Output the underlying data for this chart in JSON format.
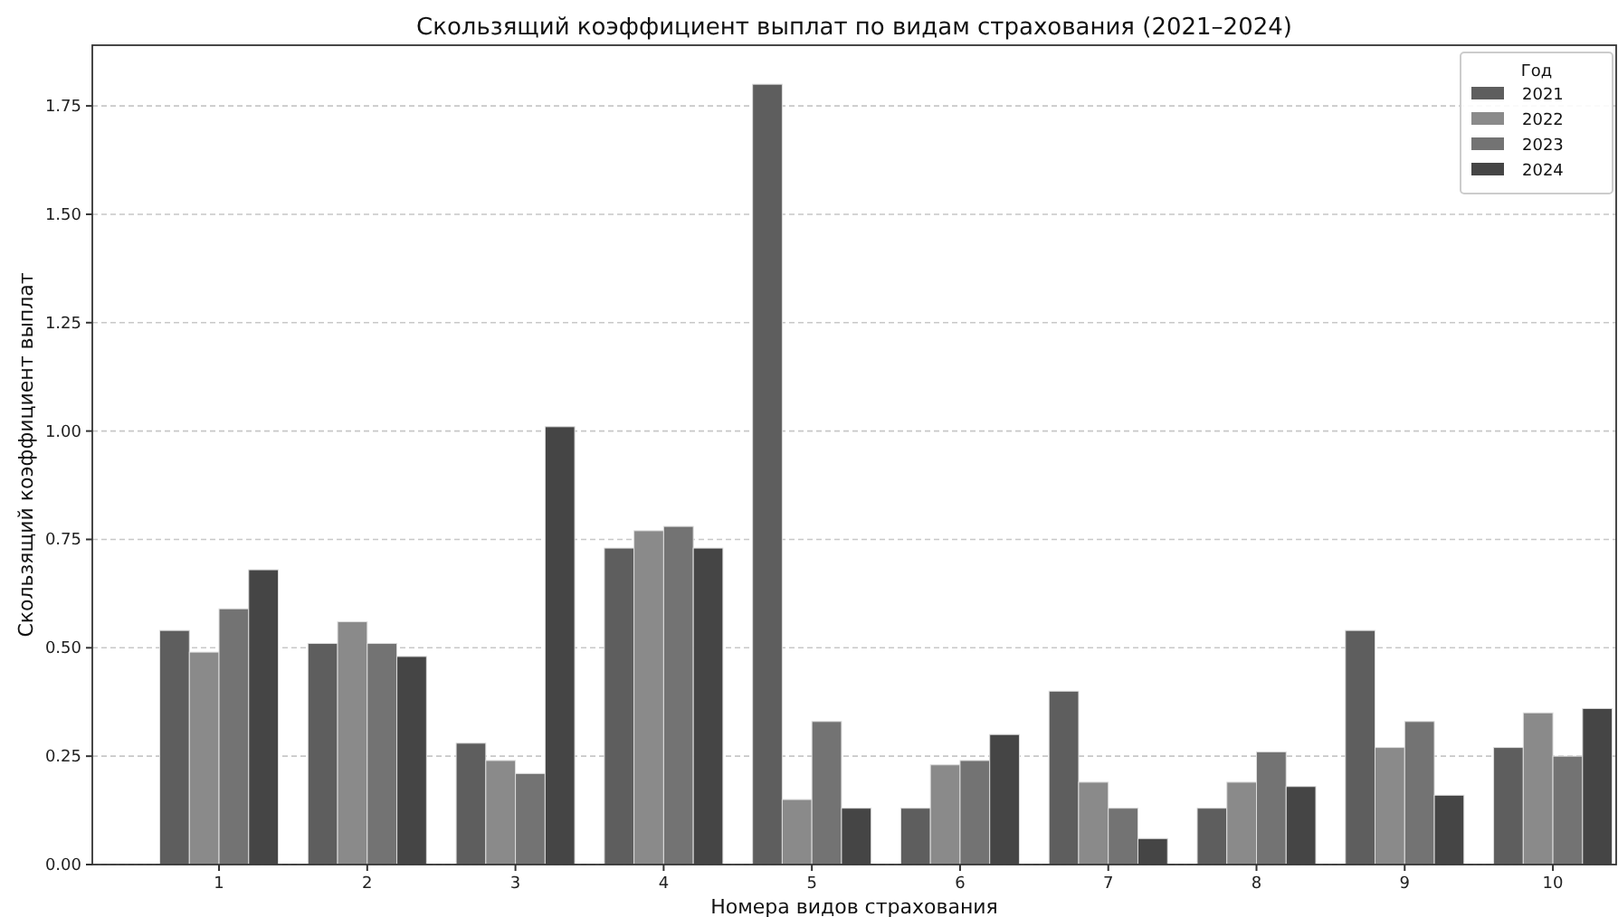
{
  "chart_data": {
    "type": "bar",
    "title": "Скользящий коэффициент выплат по видам страхования (2021–2024)",
    "xlabel": "Номера видов страхования",
    "ylabel": "Скользящий коэффициент выплат",
    "legend_title": "Год",
    "categories": [
      "1",
      "2",
      "3",
      "4",
      "5",
      "6",
      "7",
      "8",
      "9",
      "10"
    ],
    "series": [
      {
        "name": "2021",
        "color": "#5e5e5e",
        "values": [
          0.54,
          0.51,
          0.28,
          0.73,
          1.8,
          0.13,
          0.4,
          0.13,
          0.54,
          0.27
        ]
      },
      {
        "name": "2022",
        "color": "#8a8a8a",
        "values": [
          0.49,
          0.56,
          0.24,
          0.77,
          0.15,
          0.23,
          0.19,
          0.19,
          0.27,
          0.35
        ]
      },
      {
        "name": "2023",
        "color": "#737373",
        "values": [
          0.59,
          0.51,
          0.21,
          0.78,
          0.33,
          0.24,
          0.13,
          0.26,
          0.33,
          0.25
        ]
      },
      {
        "name": "2024",
        "color": "#454545",
        "values": [
          0.68,
          0.48,
          1.01,
          0.73,
          0.13,
          0.3,
          0.06,
          0.18,
          0.16,
          0.36
        ]
      }
    ],
    "ylim": [
      0,
      1.89
    ],
    "yticks": [
      {
        "value": 0,
        "label": "0.00"
      },
      {
        "value": 0.25,
        "label": "0.25"
      },
      {
        "value": 0.5,
        "label": "0.50"
      },
      {
        "value": 0.75,
        "label": "0.75"
      },
      {
        "value": 1,
        "label": "1.00"
      },
      {
        "value": 1.25,
        "label": "1.25"
      },
      {
        "value": 1.5,
        "label": "1.50"
      },
      {
        "value": 1.75,
        "label": "1.75"
      }
    ],
    "grid": "y",
    "legend": "top right"
  }
}
